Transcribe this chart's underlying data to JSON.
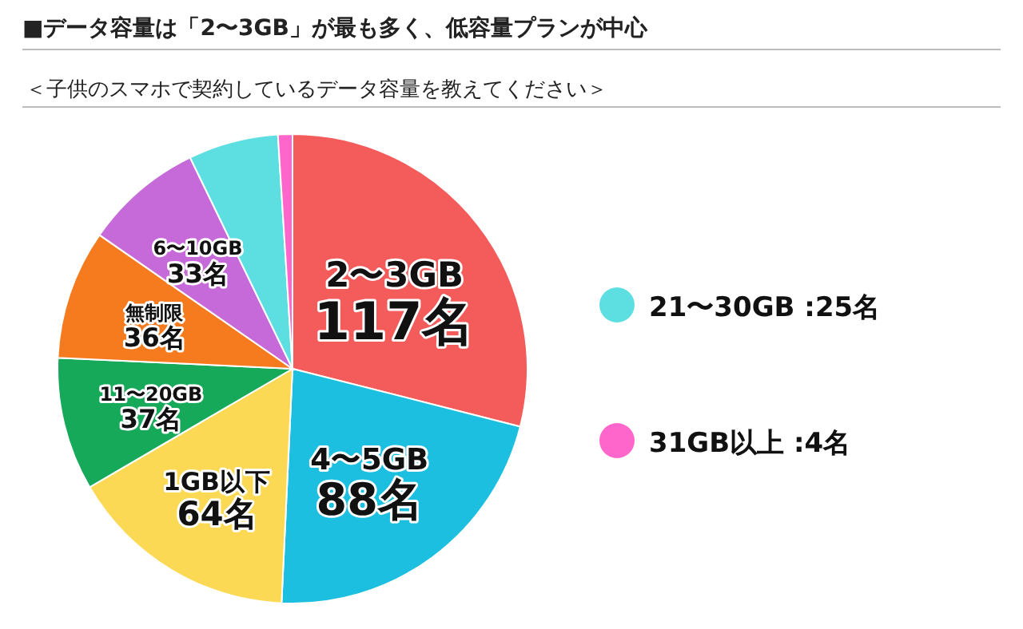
{
  "chart_data": {
    "type": "pie",
    "title": "■データ容量は「2〜3GB」が最も多く、低容量プランが中心",
    "subtitle": "＜子供のスマホで契約しているデータ容量を教えてください＞",
    "categories": [
      "2〜3GB",
      "4〜5GB",
      "1GB以下",
      "11〜20GB",
      "無制限",
      "6〜10GB",
      "21〜30GB",
      "31GB以上"
    ],
    "values": [
      117,
      88,
      64,
      37,
      36,
      33,
      25,
      4
    ],
    "colors": [
      "#f45b5b",
      "#1dbfe0",
      "#fcd954",
      "#17a95a",
      "#f67b1e",
      "#c56ad8",
      "#5ddfe2",
      "#ff66cc"
    ],
    "value_labels": [
      "117名",
      "88名",
      "64名",
      "37名",
      "36名",
      "33名",
      ":25名",
      ":4名"
    ],
    "legend": "right"
  }
}
